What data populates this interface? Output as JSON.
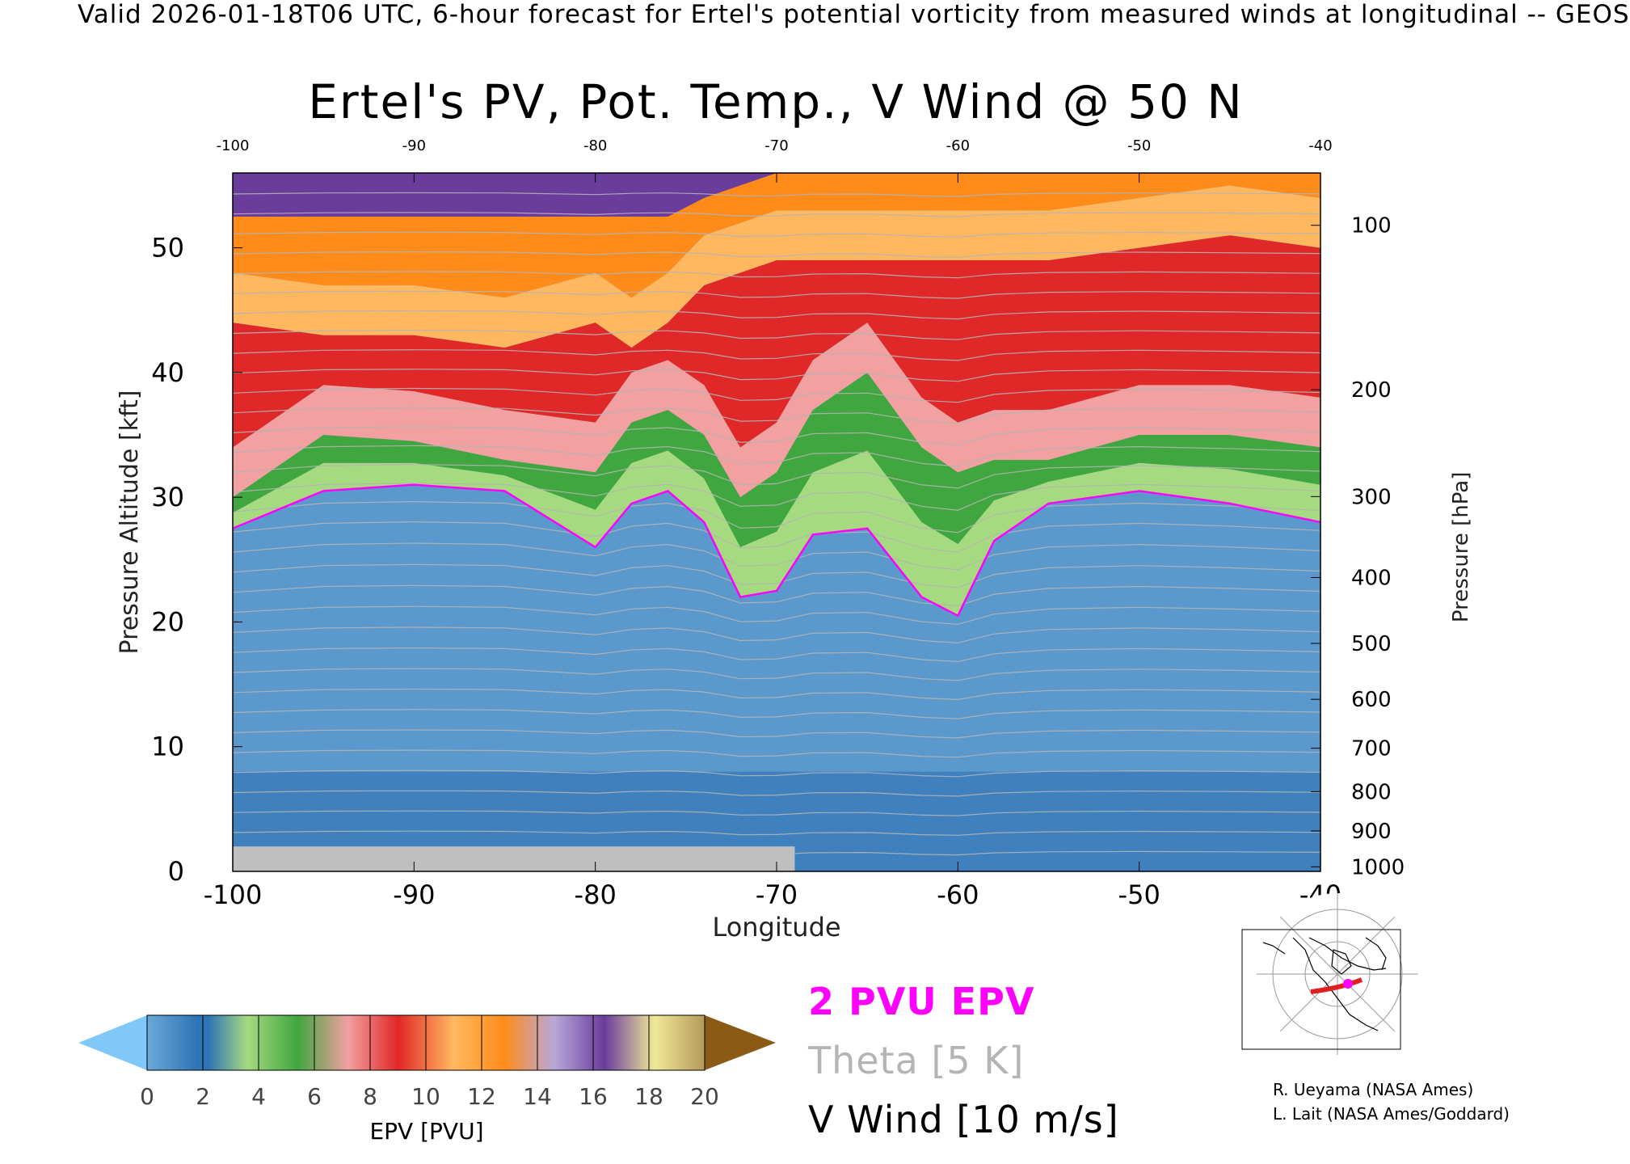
{
  "header": {
    "supertitle": "Valid 2026-01-18T06 UTC, 6-hour forecast for Ertel's potential vorticity from measured winds at longitudinal -- GEOS",
    "title": "Ertel's PV, Pot. Temp., V Wind @ 50 N"
  },
  "legend": {
    "pv_contour": "2 PVU EPV",
    "theta": "Theta [5 K]",
    "wind": "V Wind [10 m/s]"
  },
  "credits": [
    "R. Ueyama (NASA Ames)",
    "L. Lait (NASA Ames/Goddard)"
  ],
  "colorbar": {
    "label": "EPV [PVU]",
    "ticks": [
      "0",
      "2",
      "4",
      "6",
      "8",
      "10",
      "12",
      "14",
      "16",
      "18",
      "20"
    ],
    "colors": [
      "#6aa8d8",
      "#2e74b6",
      "#a6da80",
      "#40a640",
      "#f2a0a0",
      "#e02828",
      "#ffb860",
      "#ff8c1a",
      "#b8a8d8",
      "#6a3c9c",
      "#f0e898"
    ],
    "under_color": "#80c8f8",
    "over_color": "#8b5a14"
  },
  "chart_data": {
    "type": "heatmap",
    "title": "Ertel's PV, Pot. Temp., V Wind @ 50 N",
    "xlabel": "Longitude",
    "ylabel": "Pressure Altitude [kft]",
    "y2label": "Pressure [hPa]",
    "xlim": [
      -100,
      -40
    ],
    "ylim": [
      0,
      56
    ],
    "x_ticks": [
      "-100",
      "-90",
      "-80",
      "-70",
      "-60",
      "-50",
      "-40"
    ],
    "y_ticks": [
      "0",
      "10",
      "20",
      "30",
      "40",
      "50"
    ],
    "y_tick_values": [
      0,
      10,
      20,
      30,
      40,
      50
    ],
    "pressure_ticks": [
      "100",
      "200",
      "300",
      "400",
      "500",
      "600",
      "700",
      "800",
      "900",
      "1000"
    ],
    "pressure_values": [
      100,
      200,
      300,
      400,
      500,
      600,
      700,
      800,
      900,
      1000
    ],
    "longitude_sample": [
      -100,
      -95,
      -90,
      -85,
      -80,
      -78,
      -76,
      -74,
      -72,
      -70,
      -68,
      -65,
      -62,
      -60,
      -58,
      -55,
      -50,
      -45,
      -40
    ],
    "pv2_tropopause_kft": [
      27.5,
      30.5,
      31,
      30.5,
      26,
      29.5,
      30.5,
      28,
      22,
      22.5,
      27,
      27.5,
      22,
      20.5,
      26.5,
      29.5,
      30.5,
      29.5,
      28
    ],
    "tropopause_break_kft": [
      30,
      35,
      34.5,
      33,
      32,
      36,
      37,
      35,
      30,
      32,
      37,
      40,
      34,
      32,
      33,
      33,
      35,
      35,
      34
    ],
    "upper_band_kft": [
      48,
      47,
      47,
      46,
      48,
      46,
      48,
      51,
      52,
      53,
      53,
      53,
      53,
      53,
      53,
      53,
      54,
      55,
      54
    ],
    "series": [
      {
        "name": "2 PVU EPV",
        "color": "#ff00ff"
      },
      {
        "name": "Theta [5 K]",
        "color": "#b4b4b4"
      },
      {
        "name": "V Wind [10 m/s]",
        "color": "#000000"
      }
    ],
    "grid": false
  },
  "inset_map": {
    "track_color": "#e02020"
  }
}
